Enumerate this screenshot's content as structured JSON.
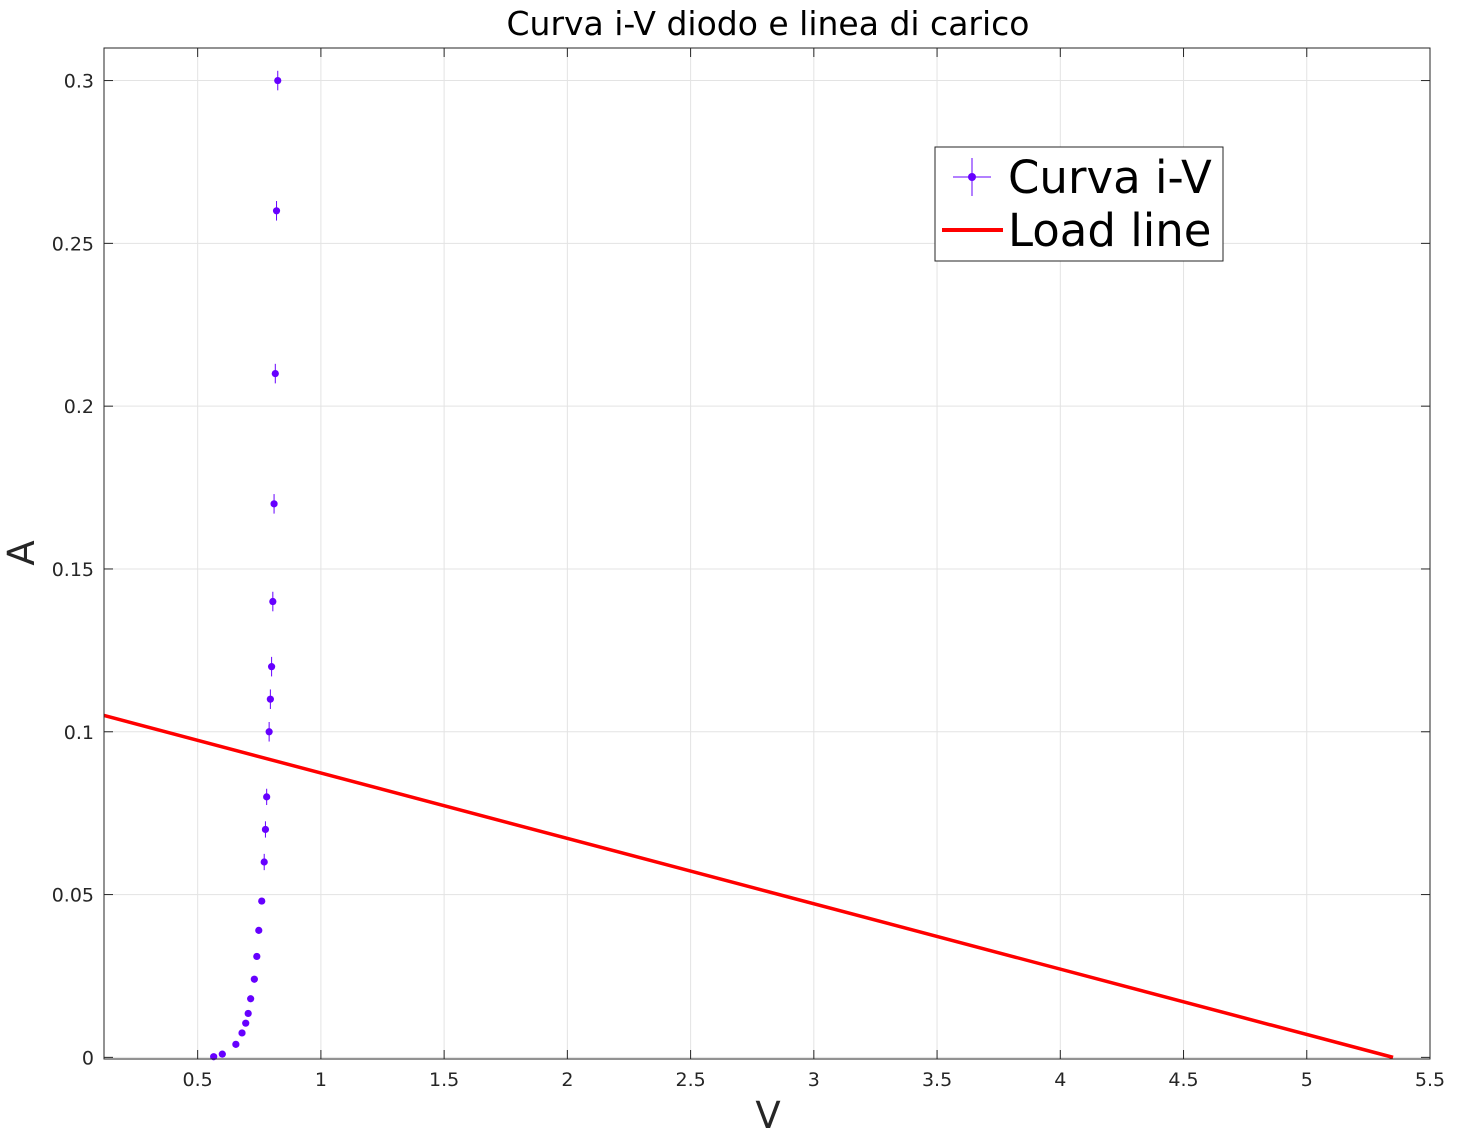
{
  "chart_data": {
    "type": "scatter",
    "title": "Curva i-V diodo e linea di carico",
    "xlabel": "V",
    "ylabel": "A",
    "xlim": [
      0.12,
      5.5
    ],
    "ylim": [
      -0.0005,
      0.31
    ],
    "xticks": [
      0.5,
      1,
      1.5,
      2,
      2.5,
      3,
      3.5,
      4,
      4.5,
      5,
      5.5
    ],
    "xtick_labels": [
      "0.5",
      "1",
      "1.5",
      "2",
      "2.5",
      "3",
      "3.5",
      "4",
      "4.5",
      "5",
      "5.5"
    ],
    "yticks": [
      0,
      0.05,
      0.1,
      0.15,
      0.2,
      0.25,
      0.3
    ],
    "ytick_labels": [
      "0",
      "0.05",
      "0.1",
      "0.15",
      "0.2",
      "0.25",
      "0.3"
    ],
    "grid": true,
    "legend_position": "top-right",
    "series": [
      {
        "name": "Curva i-V",
        "type": "errorbar",
        "color": "#6600ff",
        "points": [
          {
            "x": 0.565,
            "y": 0.0002,
            "yerr": 0
          },
          {
            "x": 0.6,
            "y": 0.001,
            "yerr": 0
          },
          {
            "x": 0.655,
            "y": 0.004,
            "yerr": 0
          },
          {
            "x": 0.68,
            "y": 0.0075,
            "yerr": 0
          },
          {
            "x": 0.695,
            "y": 0.0105,
            "yerr": 0
          },
          {
            "x": 0.705,
            "y": 0.0135,
            "yerr": 0
          },
          {
            "x": 0.715,
            "y": 0.018,
            "yerr": 0
          },
          {
            "x": 0.73,
            "y": 0.024,
            "yerr": 0
          },
          {
            "x": 0.74,
            "y": 0.031,
            "yerr": 0
          },
          {
            "x": 0.748,
            "y": 0.039,
            "yerr": 0
          },
          {
            "x": 0.76,
            "y": 0.048,
            "yerr": 0
          },
          {
            "x": 0.77,
            "y": 0.06,
            "yerr": 0.0025
          },
          {
            "x": 0.775,
            "y": 0.07,
            "yerr": 0.0025
          },
          {
            "x": 0.78,
            "y": 0.08,
            "yerr": 0.0025
          },
          {
            "x": 0.79,
            "y": 0.1,
            "yerr": 0.003
          },
          {
            "x": 0.795,
            "y": 0.11,
            "yerr": 0.003
          },
          {
            "x": 0.8,
            "y": 0.12,
            "yerr": 0.003
          },
          {
            "x": 0.805,
            "y": 0.14,
            "yerr": 0.003
          },
          {
            "x": 0.81,
            "y": 0.17,
            "yerr": 0.003
          },
          {
            "x": 0.815,
            "y": 0.21,
            "yerr": 0.003
          },
          {
            "x": 0.82,
            "y": 0.26,
            "yerr": 0.003
          },
          {
            "x": 0.825,
            "y": 0.3,
            "yerr": 0.003
          }
        ]
      },
      {
        "name": "Load line",
        "type": "line",
        "color": "#ff0000",
        "x": [
          0.12,
          5.35
        ],
        "y": [
          0.105,
          0.0
        ]
      }
    ]
  }
}
